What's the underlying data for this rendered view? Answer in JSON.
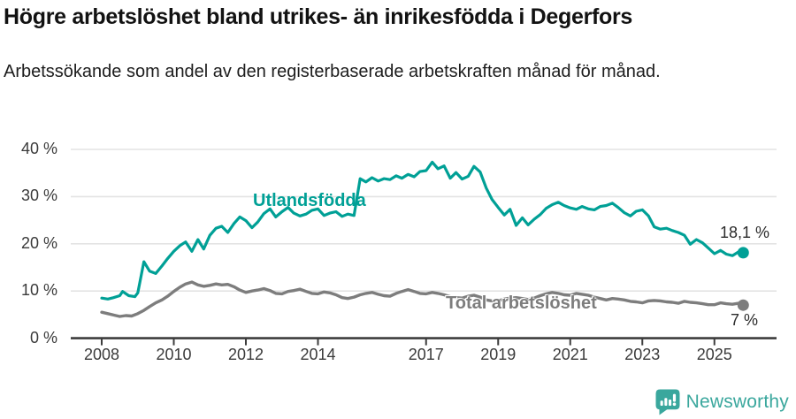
{
  "footer": {
    "brand": "Newsworthy",
    "icon": "newsworthy-bubble-chart-icon"
  },
  "colors": {
    "accent_teal": "#00a096",
    "series_gray": "#7d7d7d",
    "logo_teal": "#3aa79d",
    "gridline": "#e3e3e3",
    "axis": "#3d3d3d",
    "text": "#121212"
  },
  "chart_data": {
    "type": "line",
    "title": "Högre arbetslöshet bland utrikes- än inrikesfödda i Degerfors",
    "subtitle": "Arbetssökande som andel av den registerbaserade arbetskraften månad för månad.",
    "xlabel": "",
    "ylabel": "",
    "ylim": [
      0,
      40
    ],
    "xlim": [
      2007.3,
      2026.3
    ],
    "grid": "horizontal",
    "legend_position": "inline-labels",
    "y_ticks": [
      {
        "value": 40,
        "label": "40 %"
      },
      {
        "value": 30,
        "label": "30 %"
      },
      {
        "value": 20,
        "label": "20 %"
      },
      {
        "value": 10,
        "label": "10 %"
      },
      {
        "value": 0,
        "label": "0 %"
      }
    ],
    "x_ticks": [
      {
        "value": 2008,
        "label": "2008"
      },
      {
        "value": 2010,
        "label": "2010"
      },
      {
        "value": 2012,
        "label": "2012"
      },
      {
        "value": 2014,
        "label": "2014"
      },
      {
        "value": 2017,
        "label": "2017"
      },
      {
        "value": 2019,
        "label": "2019"
      },
      {
        "value": 2021,
        "label": "2021"
      },
      {
        "value": 2023,
        "label": "2023"
      },
      {
        "value": 2025,
        "label": "2025"
      }
    ],
    "series": [
      {
        "id": "utlandsfodda",
        "name": "Utlandsfödda",
        "color": "#00a096",
        "width": 3.2,
        "end_label": "18,1 %",
        "end_value": 18.1,
        "points": [
          [
            2008.0,
            8.5
          ],
          [
            2008.17,
            8.3
          ],
          [
            2008.33,
            8.6
          ],
          [
            2008.5,
            9.0
          ],
          [
            2008.58,
            9.9
          ],
          [
            2008.75,
            9.0
          ],
          [
            2008.92,
            8.8
          ],
          [
            2009.0,
            9.6
          ],
          [
            2009.17,
            16.2
          ],
          [
            2009.33,
            14.2
          ],
          [
            2009.5,
            13.7
          ],
          [
            2009.67,
            15.3
          ],
          [
            2009.83,
            16.9
          ],
          [
            2010.0,
            18.4
          ],
          [
            2010.17,
            19.6
          ],
          [
            2010.33,
            20.4
          ],
          [
            2010.5,
            18.4
          ],
          [
            2010.67,
            20.9
          ],
          [
            2010.83,
            18.9
          ],
          [
            2011.0,
            21.8
          ],
          [
            2011.17,
            23.3
          ],
          [
            2011.33,
            23.7
          ],
          [
            2011.5,
            22.4
          ],
          [
            2011.67,
            24.3
          ],
          [
            2011.83,
            25.7
          ],
          [
            2012.0,
            24.9
          ],
          [
            2012.17,
            23.4
          ],
          [
            2012.33,
            24.6
          ],
          [
            2012.5,
            26.4
          ],
          [
            2012.67,
            27.4
          ],
          [
            2012.83,
            25.7
          ],
          [
            2013.0,
            26.8
          ],
          [
            2013.17,
            27.7
          ],
          [
            2013.33,
            26.5
          ],
          [
            2013.5,
            25.9
          ],
          [
            2013.67,
            26.3
          ],
          [
            2013.83,
            27.1
          ],
          [
            2014.0,
            27.4
          ],
          [
            2014.17,
            26.0
          ],
          [
            2014.33,
            26.5
          ],
          [
            2014.5,
            26.8
          ],
          [
            2014.67,
            25.8
          ],
          [
            2014.83,
            26.3
          ],
          [
            2015.0,
            26.0
          ],
          [
            2015.17,
            33.8
          ],
          [
            2015.33,
            33.1
          ],
          [
            2015.5,
            34.0
          ],
          [
            2015.67,
            33.3
          ],
          [
            2015.83,
            33.8
          ],
          [
            2016.0,
            33.6
          ],
          [
            2016.17,
            34.4
          ],
          [
            2016.33,
            33.9
          ],
          [
            2016.5,
            34.7
          ],
          [
            2016.67,
            34.2
          ],
          [
            2016.83,
            35.3
          ],
          [
            2017.0,
            35.5
          ],
          [
            2017.17,
            37.3
          ],
          [
            2017.33,
            35.9
          ],
          [
            2017.5,
            36.5
          ],
          [
            2017.67,
            33.9
          ],
          [
            2017.83,
            35.1
          ],
          [
            2018.0,
            33.7
          ],
          [
            2018.17,
            34.3
          ],
          [
            2018.33,
            36.4
          ],
          [
            2018.5,
            35.2
          ],
          [
            2018.67,
            31.8
          ],
          [
            2018.83,
            29.4
          ],
          [
            2019.0,
            27.7
          ],
          [
            2019.17,
            26.1
          ],
          [
            2019.33,
            27.3
          ],
          [
            2019.5,
            23.9
          ],
          [
            2019.67,
            25.5
          ],
          [
            2019.83,
            24.0
          ],
          [
            2020.0,
            25.2
          ],
          [
            2020.17,
            26.2
          ],
          [
            2020.33,
            27.5
          ],
          [
            2020.5,
            28.3
          ],
          [
            2020.67,
            28.8
          ],
          [
            2020.83,
            28.1
          ],
          [
            2021.0,
            27.6
          ],
          [
            2021.17,
            27.3
          ],
          [
            2021.33,
            27.9
          ],
          [
            2021.5,
            27.4
          ],
          [
            2021.67,
            27.2
          ],
          [
            2021.83,
            27.9
          ],
          [
            2022.0,
            28.1
          ],
          [
            2022.17,
            28.6
          ],
          [
            2022.33,
            27.7
          ],
          [
            2022.5,
            26.6
          ],
          [
            2022.67,
            25.9
          ],
          [
            2022.83,
            26.9
          ],
          [
            2023.0,
            27.2
          ],
          [
            2023.17,
            25.9
          ],
          [
            2023.33,
            23.6
          ],
          [
            2023.5,
            23.1
          ],
          [
            2023.67,
            23.3
          ],
          [
            2023.83,
            22.8
          ],
          [
            2024.0,
            22.4
          ],
          [
            2024.17,
            21.8
          ],
          [
            2024.33,
            19.9
          ],
          [
            2024.5,
            20.9
          ],
          [
            2024.67,
            20.2
          ],
          [
            2024.83,
            19.1
          ],
          [
            2025.0,
            17.9
          ],
          [
            2025.17,
            18.6
          ],
          [
            2025.33,
            17.8
          ],
          [
            2025.5,
            17.5
          ],
          [
            2025.67,
            18.3
          ],
          [
            2025.8,
            18.1
          ]
        ]
      },
      {
        "id": "total",
        "name": "Total arbetslöshet",
        "color": "#7d7d7d",
        "width": 3.4,
        "end_label": "7 %",
        "end_value": 7.0,
        "points": [
          [
            2008.0,
            5.5
          ],
          [
            2008.17,
            5.2
          ],
          [
            2008.33,
            4.9
          ],
          [
            2008.5,
            4.6
          ],
          [
            2008.67,
            4.8
          ],
          [
            2008.83,
            4.7
          ],
          [
            2009.0,
            5.2
          ],
          [
            2009.17,
            5.9
          ],
          [
            2009.33,
            6.7
          ],
          [
            2009.5,
            7.5
          ],
          [
            2009.67,
            8.1
          ],
          [
            2009.83,
            8.9
          ],
          [
            2010.0,
            9.9
          ],
          [
            2010.17,
            10.8
          ],
          [
            2010.33,
            11.5
          ],
          [
            2010.5,
            11.9
          ],
          [
            2010.67,
            11.3
          ],
          [
            2010.83,
            11.0
          ],
          [
            2011.0,
            11.2
          ],
          [
            2011.17,
            11.5
          ],
          [
            2011.33,
            11.3
          ],
          [
            2011.5,
            11.4
          ],
          [
            2011.67,
            10.9
          ],
          [
            2011.83,
            10.2
          ],
          [
            2012.0,
            9.7
          ],
          [
            2012.17,
            10.0
          ],
          [
            2012.33,
            10.2
          ],
          [
            2012.5,
            10.5
          ],
          [
            2012.67,
            10.1
          ],
          [
            2012.83,
            9.5
          ],
          [
            2013.0,
            9.4
          ],
          [
            2013.17,
            9.9
          ],
          [
            2013.33,
            10.1
          ],
          [
            2013.5,
            10.4
          ],
          [
            2013.67,
            9.9
          ],
          [
            2013.83,
            9.5
          ],
          [
            2014.0,
            9.4
          ],
          [
            2014.17,
            9.8
          ],
          [
            2014.33,
            9.6
          ],
          [
            2014.5,
            9.2
          ],
          [
            2014.67,
            8.6
          ],
          [
            2014.83,
            8.4
          ],
          [
            2015.0,
            8.7
          ],
          [
            2015.17,
            9.2
          ],
          [
            2015.33,
            9.5
          ],
          [
            2015.5,
            9.7
          ],
          [
            2015.67,
            9.3
          ],
          [
            2015.83,
            9.0
          ],
          [
            2016.0,
            8.9
          ],
          [
            2016.17,
            9.5
          ],
          [
            2016.33,
            9.9
          ],
          [
            2016.5,
            10.3
          ],
          [
            2016.67,
            9.9
          ],
          [
            2016.83,
            9.5
          ],
          [
            2017.0,
            9.4
          ],
          [
            2017.17,
            9.7
          ],
          [
            2017.33,
            9.5
          ],
          [
            2017.5,
            9.2
          ],
          [
            2017.67,
            8.8
          ],
          [
            2017.83,
            8.6
          ],
          [
            2018.0,
            8.5
          ],
          [
            2018.17,
            8.9
          ],
          [
            2018.33,
            9.1
          ],
          [
            2018.5,
            8.7
          ],
          [
            2018.67,
            8.1
          ],
          [
            2018.83,
            7.9
          ],
          [
            2019.0,
            7.9
          ],
          [
            2019.17,
            8.3
          ],
          [
            2019.33,
            8.5
          ],
          [
            2019.5,
            8.6
          ],
          [
            2019.67,
            8.4
          ],
          [
            2019.83,
            8.2
          ],
          [
            2020.0,
            8.5
          ],
          [
            2020.17,
            9.0
          ],
          [
            2020.33,
            9.4
          ],
          [
            2020.5,
            9.7
          ],
          [
            2020.67,
            9.5
          ],
          [
            2020.83,
            9.2
          ],
          [
            2021.0,
            9.1
          ],
          [
            2021.17,
            9.5
          ],
          [
            2021.33,
            9.3
          ],
          [
            2021.5,
            9.1
          ],
          [
            2021.67,
            8.7
          ],
          [
            2021.83,
            8.4
          ],
          [
            2022.0,
            8.1
          ],
          [
            2022.17,
            8.4
          ],
          [
            2022.33,
            8.3
          ],
          [
            2022.5,
            8.1
          ],
          [
            2022.67,
            7.8
          ],
          [
            2022.83,
            7.7
          ],
          [
            2023.0,
            7.5
          ],
          [
            2023.17,
            7.9
          ],
          [
            2023.33,
            8.0
          ],
          [
            2023.5,
            7.9
          ],
          [
            2023.67,
            7.7
          ],
          [
            2023.83,
            7.6
          ],
          [
            2024.0,
            7.4
          ],
          [
            2024.17,
            7.8
          ],
          [
            2024.33,
            7.6
          ],
          [
            2024.5,
            7.5
          ],
          [
            2024.67,
            7.3
          ],
          [
            2024.83,
            7.1
          ],
          [
            2025.0,
            7.1
          ],
          [
            2025.17,
            7.5
          ],
          [
            2025.33,
            7.3
          ],
          [
            2025.5,
            7.2
          ],
          [
            2025.67,
            7.4
          ],
          [
            2025.8,
            7.0
          ]
        ]
      }
    ]
  }
}
